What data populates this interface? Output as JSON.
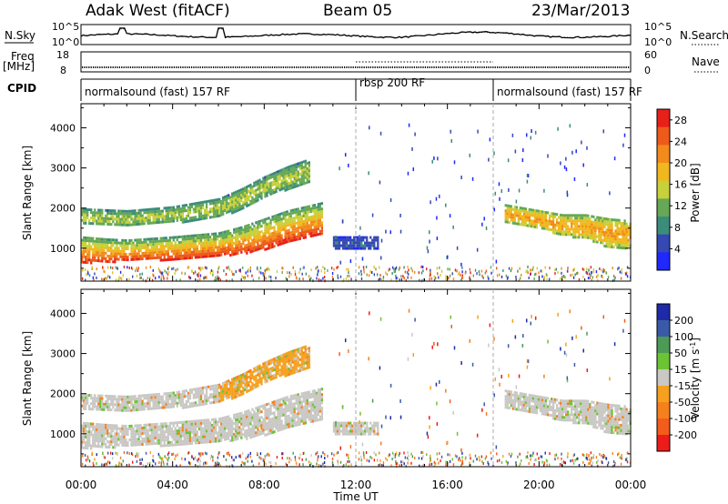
{
  "header": {
    "station": "Adak West (fitACF)",
    "beam": "Beam 05",
    "date": "23/Mar/2013"
  },
  "noise_panel": {
    "left_label": "N.Sky",
    "right_label": "N.Search",
    "left_ticks": [
      "10^5",
      "10^0"
    ],
    "right_ticks": [
      "10^5",
      "10^0"
    ]
  },
  "freq_panel": {
    "left_label": "Freq",
    "left_unit": "[MHz]",
    "right_label": "Nave",
    "left_ticks": [
      "18",
      "8"
    ],
    "right_ticks": [
      "60",
      "0"
    ]
  },
  "cpid_panel": {
    "label": "CPID",
    "segments": [
      {
        "name": "normalsound (fast) 157 RF",
        "start_hour": 0,
        "end_hour": 12
      },
      {
        "name": "rbsp 200 RF",
        "start_hour": 12,
        "end_hour": 18
      },
      {
        "name": "normalsound (fast) 157 RF",
        "start_hour": 18,
        "end_hour": 24
      }
    ]
  },
  "range_axis": {
    "label": "Slant Range [km]",
    "ticks": [
      "1000",
      "2000",
      "3000",
      "4000"
    ]
  },
  "time_axis": {
    "label": "Time UT",
    "ticks": [
      "00:00",
      "04:00",
      "08:00",
      "12:00",
      "16:00",
      "20:00",
      "00:00"
    ]
  },
  "power_colorbar": {
    "label": "Power [dB]",
    "ticks": [
      "4",
      "8",
      "12",
      "16",
      "20",
      "24",
      "28"
    ]
  },
  "velocity_colorbar": {
    "label_main": "Velocity [m s",
    "label_sup": "-1",
    "label_end": "]",
    "ticks": [
      "200",
      "100",
      "50",
      "15",
      "-15",
      "-50",
      "-100",
      "-200"
    ]
  },
  "chart_data": {
    "type": "heatmap",
    "title": "Adak West (fitACF) Beam 05 23/Mar/2013",
    "xlabel": "Time UT",
    "ylabel": "Slant Range [km]",
    "x_range_hours": [
      0,
      24
    ],
    "y_range_km": [
      180,
      4600
    ],
    "mode_change_hours": [
      12,
      18
    ],
    "power_scale": {
      "min": 0,
      "max": 30,
      "unit": "dB",
      "colors": [
        "#1f28ff",
        "#3548b4",
        "#3c8c7c",
        "#66a855",
        "#c8d03c",
        "#f0b81e",
        "#f28a1c",
        "#ee5a1a",
        "#e8201a"
      ]
    },
    "velocity_scale": {
      "min": -250,
      "max": 250,
      "unit": "m s-1",
      "colors": [
        "#ee1b1b",
        "#f25d1c",
        "#f5801e",
        "#f5a11f",
        "#c9c8c4",
        "#6cc334",
        "#4d9a56",
        "#3a5aa8",
        "#1f2aa8"
      ]
    },
    "echo_bands": [
      {
        "name": "main_band",
        "x_hours": [
          0,
          1,
          2,
          3,
          4,
          5,
          6,
          7,
          8,
          9,
          10.5
        ],
        "lower_km": [
          650,
          680,
          700,
          720,
          750,
          780,
          830,
          880,
          1000,
          1200,
          1380
        ],
        "upper_km": [
          1300,
          1250,
          1220,
          1260,
          1300,
          1350,
          1400,
          1550,
          1750,
          1950,
          2150
        ],
        "peak_power_db": 28
      },
      {
        "name": "upper_band",
        "x_hours": [
          0,
          2,
          4,
          6,
          7,
          8,
          9,
          10
        ],
        "lower_km": [
          1600,
          1550,
          1650,
          1800,
          2000,
          2300,
          2500,
          2650
        ],
        "upper_km": [
          2000,
          1950,
          2050,
          2250,
          2500,
          2800,
          3050,
          3250
        ],
        "peak_power_db": 14
      },
      {
        "name": "evening_band",
        "x_hours": [
          18.5,
          20,
          21,
          22,
          23,
          24
        ],
        "lower_km": [
          1650,
          1500,
          1350,
          1250,
          1050,
          1000
        ],
        "upper_km": [
          2100,
          1950,
          1850,
          1850,
          1750,
          1700
        ],
        "peak_power_db": 20
      },
      {
        "name": "noon_patch",
        "x_hours": [
          11,
          12,
          13
        ],
        "lower_km": [
          1000,
          1000,
          1000
        ],
        "upper_km": [
          1300,
          1300,
          1300
        ],
        "peak_power_db": 6
      }
    ],
    "noise_sky_spikes_hours": [
      1.8,
      6.1
    ],
    "frequency_mhz": 10.5,
    "nave_rbsp": 40
  }
}
